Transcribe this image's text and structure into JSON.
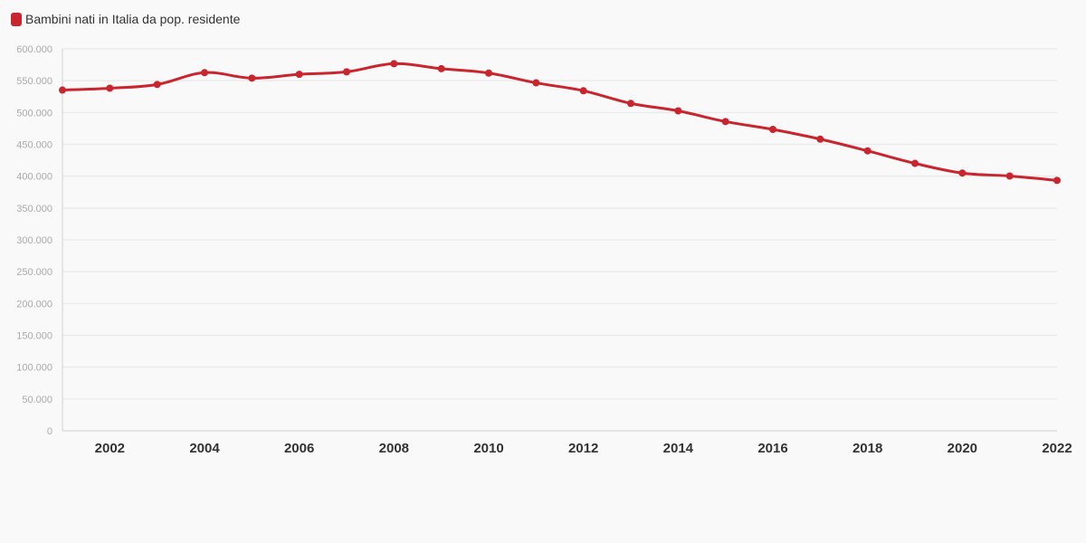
{
  "chart_data": {
    "type": "line",
    "title": "",
    "xlabel": "",
    "ylabel": "",
    "x": [
      2001,
      2002,
      2003,
      2004,
      2005,
      2006,
      2007,
      2008,
      2009,
      2010,
      2011,
      2012,
      2013,
      2014,
      2015,
      2016,
      2017,
      2018,
      2019,
      2020,
      2021,
      2022
    ],
    "xticks": [
      "2002",
      "2004",
      "2006",
      "2008",
      "2010",
      "2012",
      "2014",
      "2016",
      "2018",
      "2020",
      "2022"
    ],
    "xlim": [
      2001,
      2022
    ],
    "yticks": [
      "0",
      "50.000",
      "100.000",
      "150.000",
      "200.000",
      "250.000",
      "300.000",
      "350.000",
      "400.000",
      "450.000",
      "500.000",
      "550.000",
      "600.000"
    ],
    "ylim": [
      0,
      600000
    ],
    "grid": true,
    "legend_position": "top-left",
    "series": [
      {
        "name": "Bambini nati in Italia da pop. residente",
        "color": "#c9252e",
        "values": [
          535282,
          538198,
          544063,
          562599,
          554022,
          560010,
          563933,
          576659,
          568857,
          561944,
          546607,
          534186,
          514308,
          502596,
          485780,
          473438,
          458151,
          439747,
          420084,
          404892,
          400249,
          393333
        ]
      }
    ]
  }
}
